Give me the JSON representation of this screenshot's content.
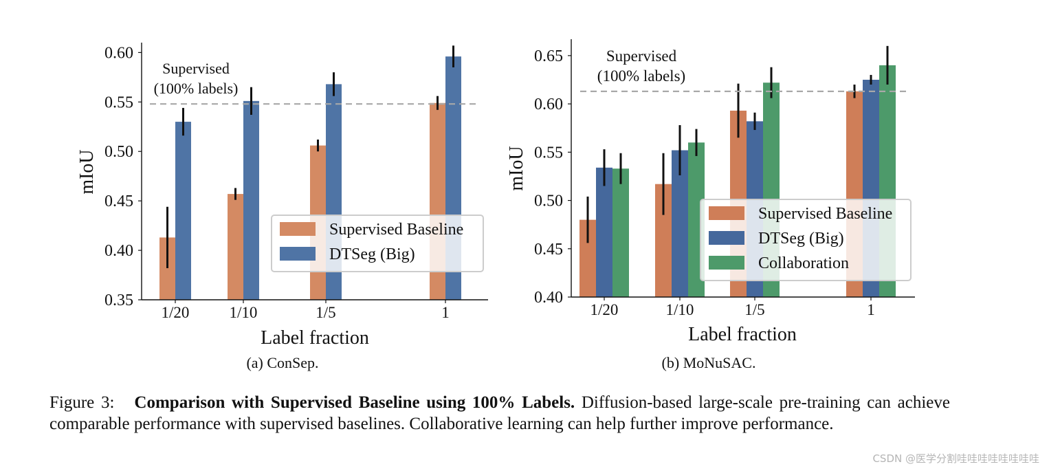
{
  "chart_data": [
    {
      "type": "bar",
      "subcaption": "(a) ConSep.",
      "xlabel": "Label fraction",
      "ylabel": "mIoU",
      "categories": [
        "1/20",
        "1/10",
        "1/5",
        "1"
      ],
      "ylim": [
        0.35,
        0.61
      ],
      "yticks": [
        "0.35",
        "0.40",
        "0.45",
        "0.50",
        "0.55",
        "0.60"
      ],
      "grid": false,
      "legend_position": "bottom-right",
      "reference_line": {
        "value": 0.548,
        "label_line1": "Supervised",
        "label_line2": "(100% labels)",
        "color": "#a8a8a8"
      },
      "series": [
        {
          "name": "Supervised Baseline",
          "color": "#d48a63",
          "values": [
            0.413,
            0.457,
            0.506,
            0.549
          ],
          "errors": [
            0.031,
            0.006,
            0.006,
            0.007
          ]
        },
        {
          "name": "DTSeg (Big)",
          "color": "#4f74a5",
          "values": [
            0.53,
            0.551,
            0.568,
            0.596
          ],
          "errors": [
            0.014,
            0.014,
            0.012,
            0.011
          ]
        }
      ]
    },
    {
      "type": "bar",
      "subcaption": "(b) MoNuSAC.",
      "xlabel": "Label fraction",
      "ylabel": "mIoU",
      "categories": [
        "1/20",
        "1/10",
        "1/5",
        "1"
      ],
      "ylim": [
        0.4,
        0.667
      ],
      "yticks": [
        "0.40",
        "0.45",
        "0.50",
        "0.55",
        "0.60",
        "0.65"
      ],
      "grid": false,
      "legend_position": "center-right",
      "reference_line": {
        "value": 0.613,
        "label_line1": "Supervised",
        "label_line2": "(100% labels)",
        "color": "#a8a8a8"
      },
      "series": [
        {
          "name": "Supervised Baseline",
          "color": "#cf7e58",
          "values": [
            0.48,
            0.517,
            0.593,
            0.613
          ],
          "errors": [
            0.024,
            0.032,
            0.028,
            0.007
          ]
        },
        {
          "name": "DTSeg (Big)",
          "color": "#45689c",
          "values": [
            0.534,
            0.552,
            0.582,
            0.625
          ],
          "errors": [
            0.019,
            0.026,
            0.009,
            0.005
          ]
        },
        {
          "name": "Collaboration",
          "color": "#4d9a6a",
          "values": [
            0.533,
            0.56,
            0.622,
            0.64
          ],
          "errors": [
            0.016,
            0.014,
            0.016,
            0.02
          ]
        }
      ]
    }
  ],
  "caption": {
    "prefix": "Figure 3:",
    "bold": "Comparison with Supervised Baseline using 100% Labels.",
    "text": "Diffusion-based large-scale pre-training can achieve comparable performance with supervised baselines. Collaborative learning can help further improve performance."
  },
  "watermark": "CSDN @医学分割哇哇哇哇哇哇哇哇"
}
